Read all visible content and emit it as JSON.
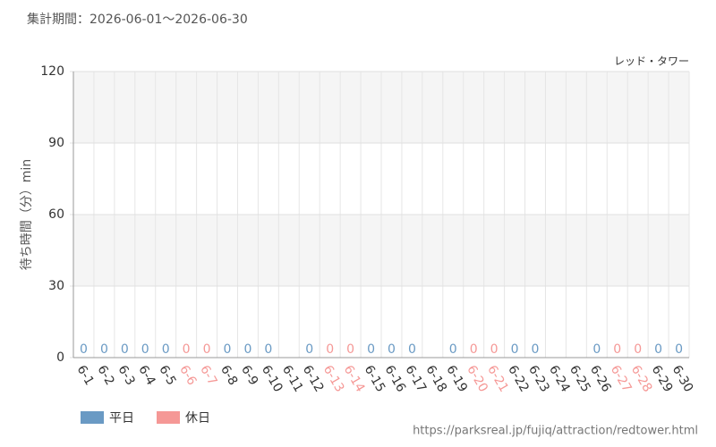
{
  "chart_data": {
    "type": "bar",
    "title": "集計期間：2026-06-01～2026-06-30",
    "subtitle": "レッド・タワー",
    "y_label": "待ち時間（分）min",
    "source": "https://parksreal.jp/fujiq/attraction/redtower.html",
    "categories": [
      "6-1",
      "6-2",
      "6-3",
      "6-4",
      "6-5",
      "6-6",
      "6-7",
      "6-8",
      "6-9",
      "6-10",
      "6-11",
      "6-12",
      "6-13",
      "6-14",
      "6-15",
      "6-16",
      "6-17",
      "6-18",
      "6-19",
      "6-20",
      "6-21",
      "6-22",
      "6-23",
      "6-24",
      "6-25",
      "6-26",
      "6-27",
      "6-28",
      "6-29",
      "6-30"
    ],
    "series": [
      {
        "name": "平日",
        "color": "#6a9ac4",
        "values": [
          0,
          0,
          0,
          0,
          0,
          null,
          null,
          0,
          0,
          0,
          null,
          0,
          null,
          null,
          0,
          0,
          0,
          null,
          0,
          null,
          null,
          0,
          0,
          null,
          null,
          0,
          null,
          null,
          0,
          0
        ]
      },
      {
        "name": "休日",
        "color": "#f59896",
        "values": [
          null,
          null,
          null,
          null,
          null,
          0,
          0,
          null,
          null,
          null,
          null,
          null,
          0,
          0,
          null,
          null,
          null,
          null,
          null,
          0,
          0,
          null,
          null,
          null,
          null,
          null,
          0,
          0,
          null,
          null
        ]
      }
    ],
    "ylim": [
      0,
      120
    ],
    "yticks": [
      0,
      30,
      60,
      90,
      120
    ],
    "grid": true
  }
}
